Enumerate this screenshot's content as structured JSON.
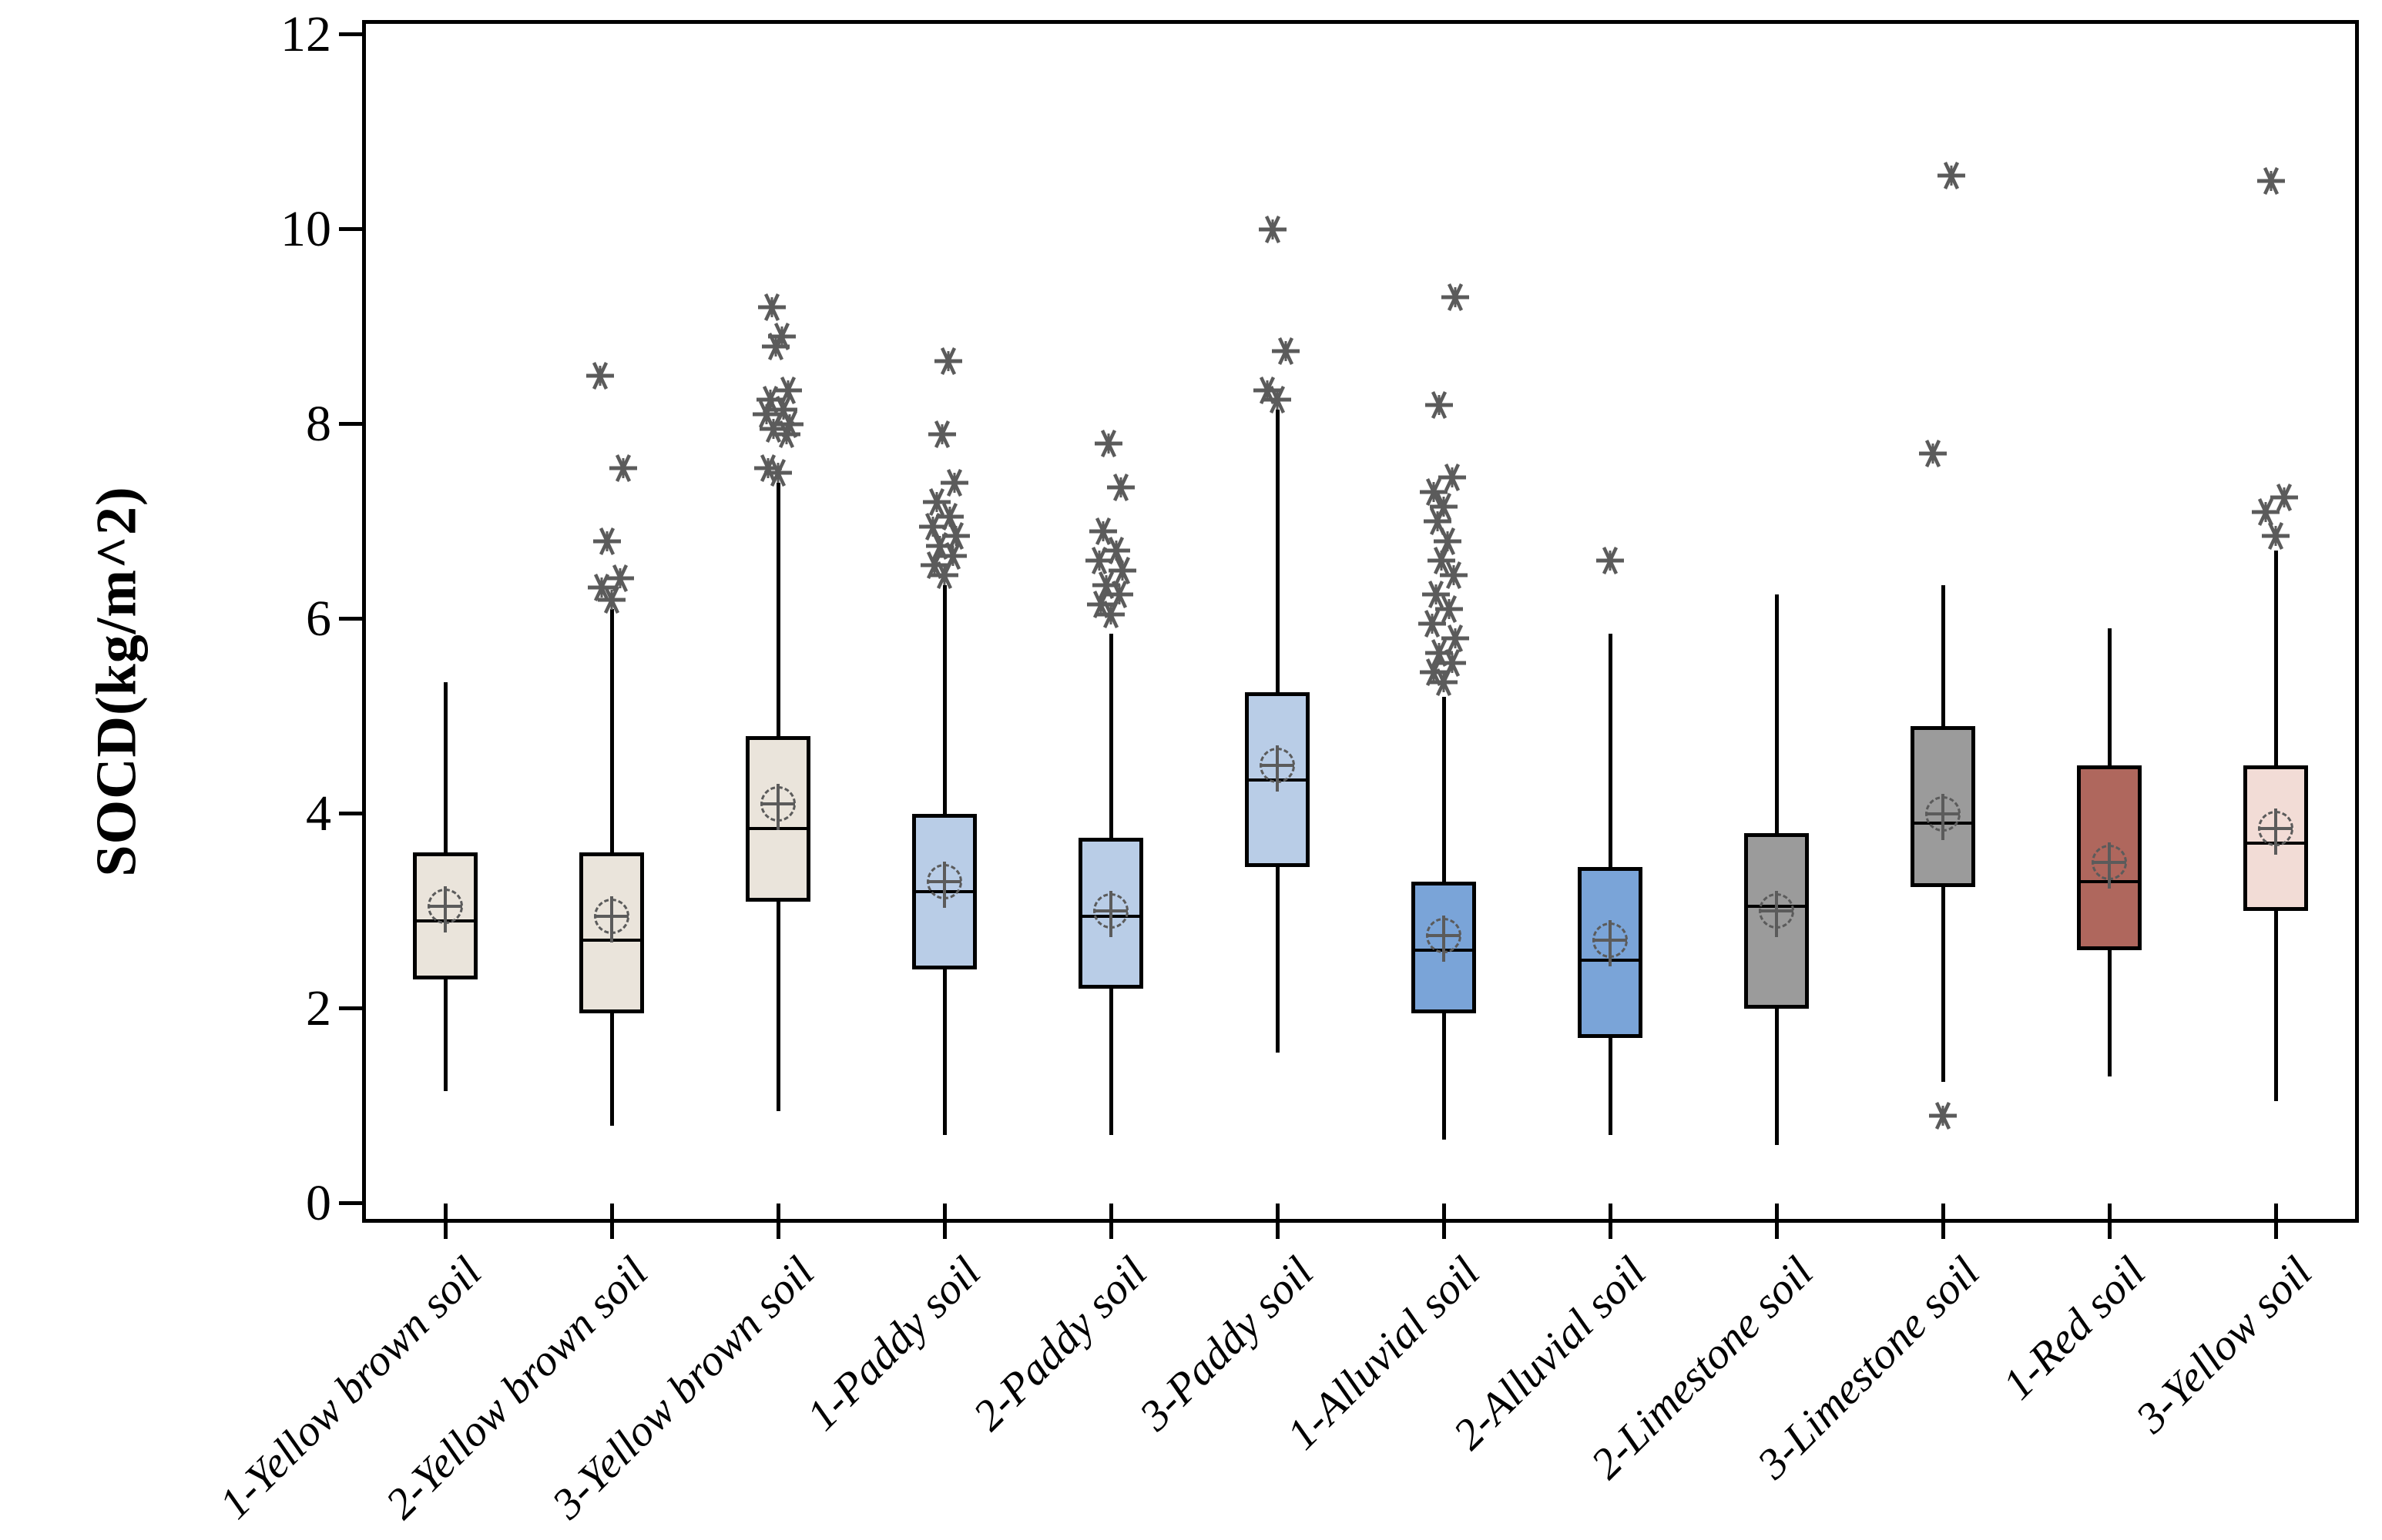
{
  "chart_data": {
    "type": "box",
    "title": "",
    "xlabel": "",
    "ylabel": "SOCD(kg/m^2)",
    "ylim": [
      -0.2,
      12.15
    ],
    "yticks": [
      0,
      2,
      4,
      6,
      8,
      10,
      12
    ],
    "grid": false,
    "legend": "none",
    "whisker_caps": false,
    "marker_style": {
      "outlier_glyph": "asterisk",
      "outlier_color": "#5b5b5b",
      "mean_glyph": "circle-plus-dashed",
      "mean_color": "#5b5b5b",
      "box_border_color": "#000000",
      "median_color": "#000000"
    },
    "color_groups": {
      "yellow_brown_soil": "#EAE4DB",
      "paddy_soil": "#B9CDE7",
      "alluvial_soil": "#7AA4D8",
      "limestone_soil": "#9B9B9B",
      "red_soil": "#AF675D",
      "yellow_soil": "#F2DCD6"
    },
    "boxes": [
      {
        "label": "1-Yellow brown soil",
        "fill": "#EAE4DB",
        "whisker_low": 1.15,
        "q1": 2.3,
        "median": 2.9,
        "mean": 3.05,
        "q3": 3.6,
        "whisker_high": 5.35,
        "outliers": []
      },
      {
        "label": "2-Yellow brown soil",
        "fill": "#EAE4DB",
        "whisker_low": 0.8,
        "q1": 1.95,
        "median": 2.7,
        "mean": 2.95,
        "q3": 3.6,
        "whisker_high": 6.1,
        "outliers": [
          6.2,
          6.32,
          6.42,
          6.8,
          7.55,
          8.5
        ]
      },
      {
        "label": "3-Yellow brown soil",
        "fill": "#EAE4DB",
        "whisker_low": 0.95,
        "q1": 3.1,
        "median": 3.85,
        "mean": 4.1,
        "q3": 4.8,
        "whisker_high": 7.4,
        "outliers": [
          7.5,
          7.55,
          7.9,
          7.95,
          8.0,
          8.1,
          8.15,
          8.25,
          8.35,
          8.8,
          8.9,
          9.2
        ]
      },
      {
        "label": "1-Paddy soil",
        "fill": "#B9CDE7",
        "whisker_low": 0.7,
        "q1": 2.4,
        "median": 3.2,
        "mean": 3.3,
        "q3": 4.0,
        "whisker_high": 6.35,
        "outliers": [
          6.45,
          6.55,
          6.65,
          6.75,
          6.85,
          6.95,
          7.05,
          7.2,
          7.4,
          7.9,
          8.65
        ]
      },
      {
        "label": "2-Paddy soil",
        "fill": "#B9CDE7",
        "whisker_low": 0.7,
        "q1": 2.2,
        "median": 2.95,
        "mean": 3.0,
        "q3": 3.75,
        "whisker_high": 5.85,
        "outliers": [
          6.05,
          6.15,
          6.25,
          6.35,
          6.5,
          6.6,
          6.7,
          6.9,
          7.35,
          7.8
        ]
      },
      {
        "label": "3-Paddy soil",
        "fill": "#B9CDE7",
        "whisker_low": 1.55,
        "q1": 3.45,
        "median": 4.35,
        "mean": 4.5,
        "q3": 5.25,
        "whisker_high": 8.15,
        "outliers": [
          8.25,
          8.35,
          8.75,
          10.0
        ]
      },
      {
        "label": "1-Alluvial soil",
        "fill": "#7AA4D8",
        "whisker_low": 0.65,
        "q1": 1.95,
        "median": 2.6,
        "mean": 2.75,
        "q3": 3.3,
        "whisker_high": 5.2,
        "outliers": [
          5.35,
          5.45,
          5.55,
          5.65,
          5.8,
          5.95,
          6.1,
          6.25,
          6.45,
          6.6,
          6.8,
          7.0,
          7.15,
          7.3,
          7.45,
          8.2,
          9.3
        ]
      },
      {
        "label": "2-Alluvial soil",
        "fill": "#7AA4D8",
        "whisker_low": 0.7,
        "q1": 1.7,
        "median": 2.5,
        "mean": 2.7,
        "q3": 3.45,
        "whisker_high": 5.85,
        "outliers": [
          6.6
        ]
      },
      {
        "label": "2-Limestone soil",
        "fill": "#9B9B9B",
        "whisker_low": 0.6,
        "q1": 2.0,
        "median": 3.05,
        "mean": 3.0,
        "q3": 3.8,
        "whisker_high": 6.25,
        "outliers": []
      },
      {
        "label": "3-Limestone soil",
        "fill": "#9B9B9B",
        "whisker_low": 1.25,
        "q1": 3.25,
        "median": 3.9,
        "mean": 4.0,
        "q3": 4.9,
        "whisker_high": 6.35,
        "outliers": [
          0.9,
          7.7,
          10.55
        ]
      },
      {
        "label": "1-Red soil",
        "fill": "#AF675D",
        "whisker_low": 1.3,
        "q1": 2.6,
        "median": 3.3,
        "mean": 3.5,
        "q3": 4.5,
        "whisker_high": 5.9,
        "outliers": []
      },
      {
        "label": "3-Yellow soil",
        "fill": "#F2DCD6",
        "whisker_low": 1.05,
        "q1": 3.0,
        "median": 3.7,
        "mean": 3.85,
        "q3": 4.5,
        "whisker_high": 6.7,
        "outliers": [
          6.85,
          7.1,
          7.25,
          10.5
        ]
      }
    ]
  },
  "layout_note": ""
}
